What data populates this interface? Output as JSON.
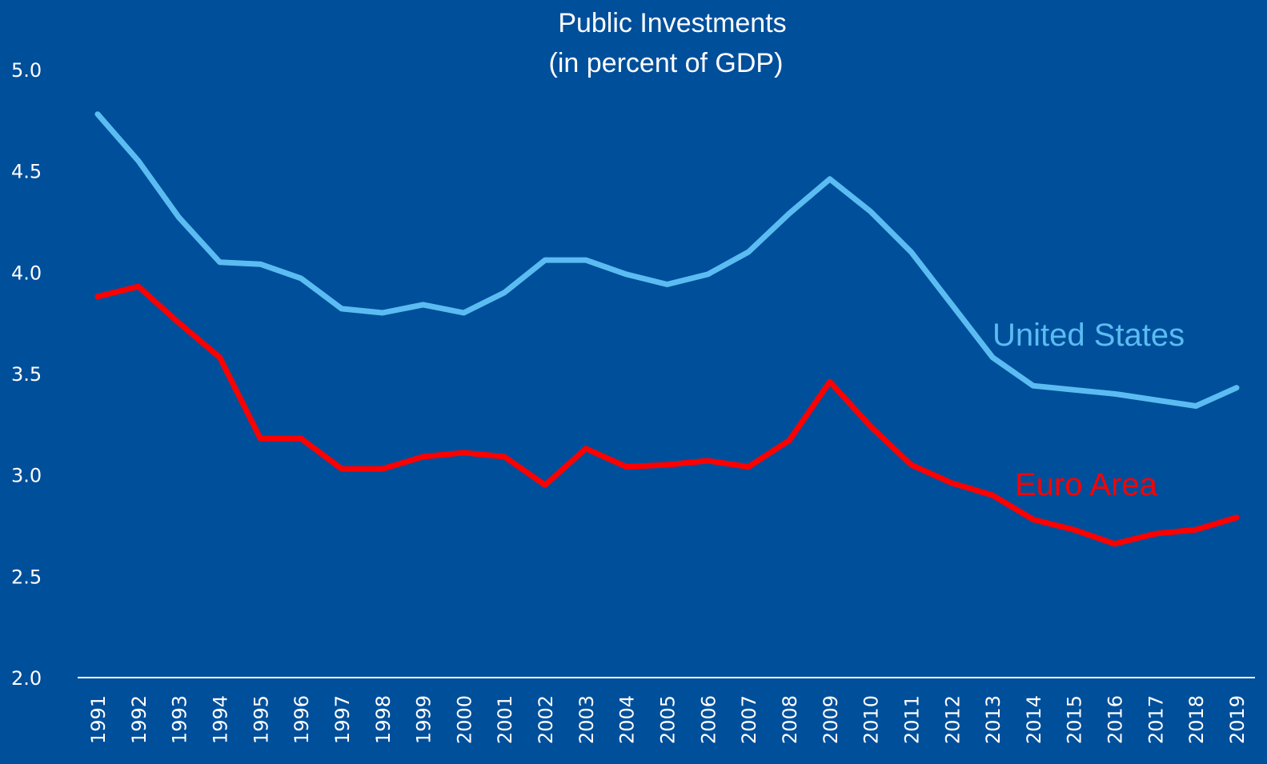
{
  "chart_data": {
    "type": "line",
    "title": "Public Investments",
    "subtitle": "(in percent of GDP)",
    "categories": [
      "1991",
      "1992",
      "1993",
      "1994",
      "1995",
      "1996",
      "1997",
      "1998",
      "1999",
      "2000",
      "2001",
      "2002",
      "2003",
      "2004",
      "2005",
      "2006",
      "2007",
      "2008",
      "2009",
      "2010",
      "2011",
      "2012",
      "2013",
      "2014",
      "2015",
      "2016",
      "2017",
      "2018",
      "2019"
    ],
    "series": [
      {
        "name": "United States",
        "color": "#5bbcf2",
        "values": [
          4.78,
          4.55,
          4.27,
          4.05,
          4.04,
          3.97,
          3.82,
          3.8,
          3.84,
          3.8,
          3.9,
          4.06,
          4.06,
          3.99,
          3.94,
          3.99,
          4.1,
          4.29,
          4.46,
          4.3,
          4.1,
          3.84,
          3.58,
          3.44,
          3.42,
          3.4,
          3.37,
          3.34,
          3.43
        ]
      },
      {
        "name": "Euro Area",
        "color": "#ff0000",
        "values": [
          3.88,
          3.93,
          3.75,
          3.58,
          3.18,
          3.18,
          3.03,
          3.03,
          3.09,
          3.11,
          3.09,
          2.95,
          3.13,
          3.04,
          3.05,
          3.07,
          3.04,
          3.17,
          3.46,
          3.24,
          3.05,
          2.96,
          2.9,
          2.78,
          2.73,
          2.66,
          2.71,
          2.73,
          2.79
        ]
      }
    ],
    "ylim": [
      2,
      5
    ],
    "yticks": [
      {
        "value": 2,
        "label": "2.0"
      },
      {
        "value": 2.5,
        "label": "2.5"
      },
      {
        "value": 3,
        "label": "3.0"
      },
      {
        "value": 3.5,
        "label": "3.5"
      },
      {
        "value": 4,
        "label": "4.0"
      },
      {
        "value": 4.5,
        "label": "4.5"
      },
      {
        "value": 5,
        "label": "5.0"
      }
    ],
    "grid": false
  }
}
